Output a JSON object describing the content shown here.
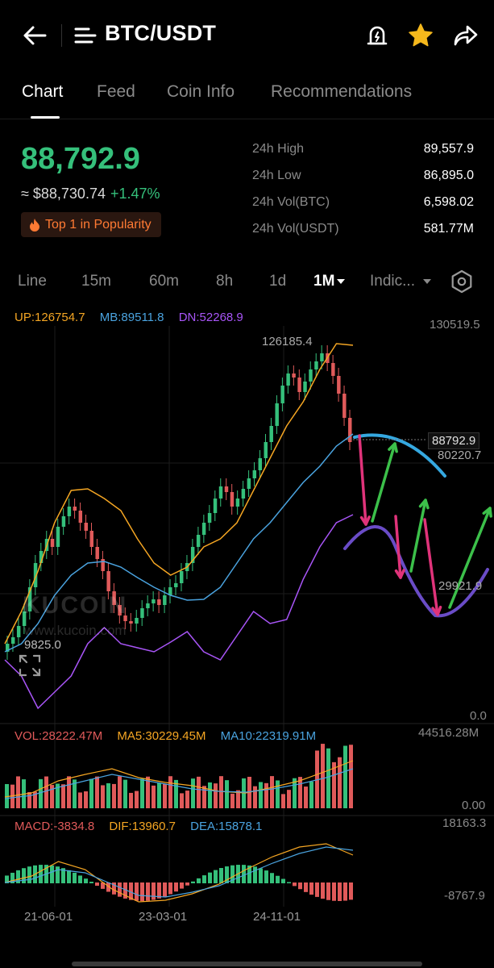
{
  "header": {
    "pair": "BTC/USDT"
  },
  "tabs": [
    "Chart",
    "Feed",
    "Coin Info",
    "Recommendations"
  ],
  "price": {
    "last": "88,792.9",
    "fiat": "≈ $88,730.74",
    "change": "+1.47%",
    "badge": "Top 1 in Popularity"
  },
  "stats": [
    {
      "label": "24h High",
      "value": "89,557.9"
    },
    {
      "label": "24h Low",
      "value": "86,895.0"
    },
    {
      "label": "24h Vol(BTC)",
      "value": "6,598.02"
    },
    {
      "label": "24h Vol(USDT)",
      "value": "581.77M"
    }
  ],
  "intervals": [
    "Line",
    "15m",
    "60m",
    "8h",
    "1d",
    "1M",
    "Indic..."
  ],
  "active_interval": "1M",
  "colors": {
    "up": "#35c07b",
    "down": "#e05a5a",
    "upper_band": "#f5a623",
    "mid_band": "#4aa3df",
    "lower_band": "#a855f7",
    "badge": "#ff7a33",
    "arrow_up": "#3cc04a",
    "arrow_down": "#e0337a",
    "annotation_cyan": "#35a8e0",
    "annotation_purple": "#6a4cc7"
  },
  "chart_data": {
    "type": "candlestick",
    "indicator_boll": {
      "up": "UP:126754.7",
      "mb": "MB:89511.8",
      "dn": "DN:52268.9"
    },
    "price_axis": {
      "top": "130519.5",
      "mid": "80220.7",
      "low": "29921.9",
      "zero": "0.0"
    },
    "current_price_tag": "88792.9",
    "high_label": "126185.4",
    "low_label": "9825.0",
    "volume": {
      "vol": "VOL:28222.47M",
      "ma5": "MA5:30229.45M",
      "ma10": "MA10:22319.91M",
      "axis_top": "44516.28M",
      "axis_bottom": "0.00"
    },
    "macd": {
      "macd": "MACD:-3834.8",
      "dif": "DIF:13960.7",
      "dea": "DEA:15878.1",
      "axis_top": "18163.3",
      "axis_bottom": "-8767.9"
    },
    "dates": [
      "21-06-01",
      "23-03-01",
      "24-11-01"
    ]
  },
  "watermark": {
    "brand": "KUCOIN",
    "url": "www.kucoin.com"
  }
}
